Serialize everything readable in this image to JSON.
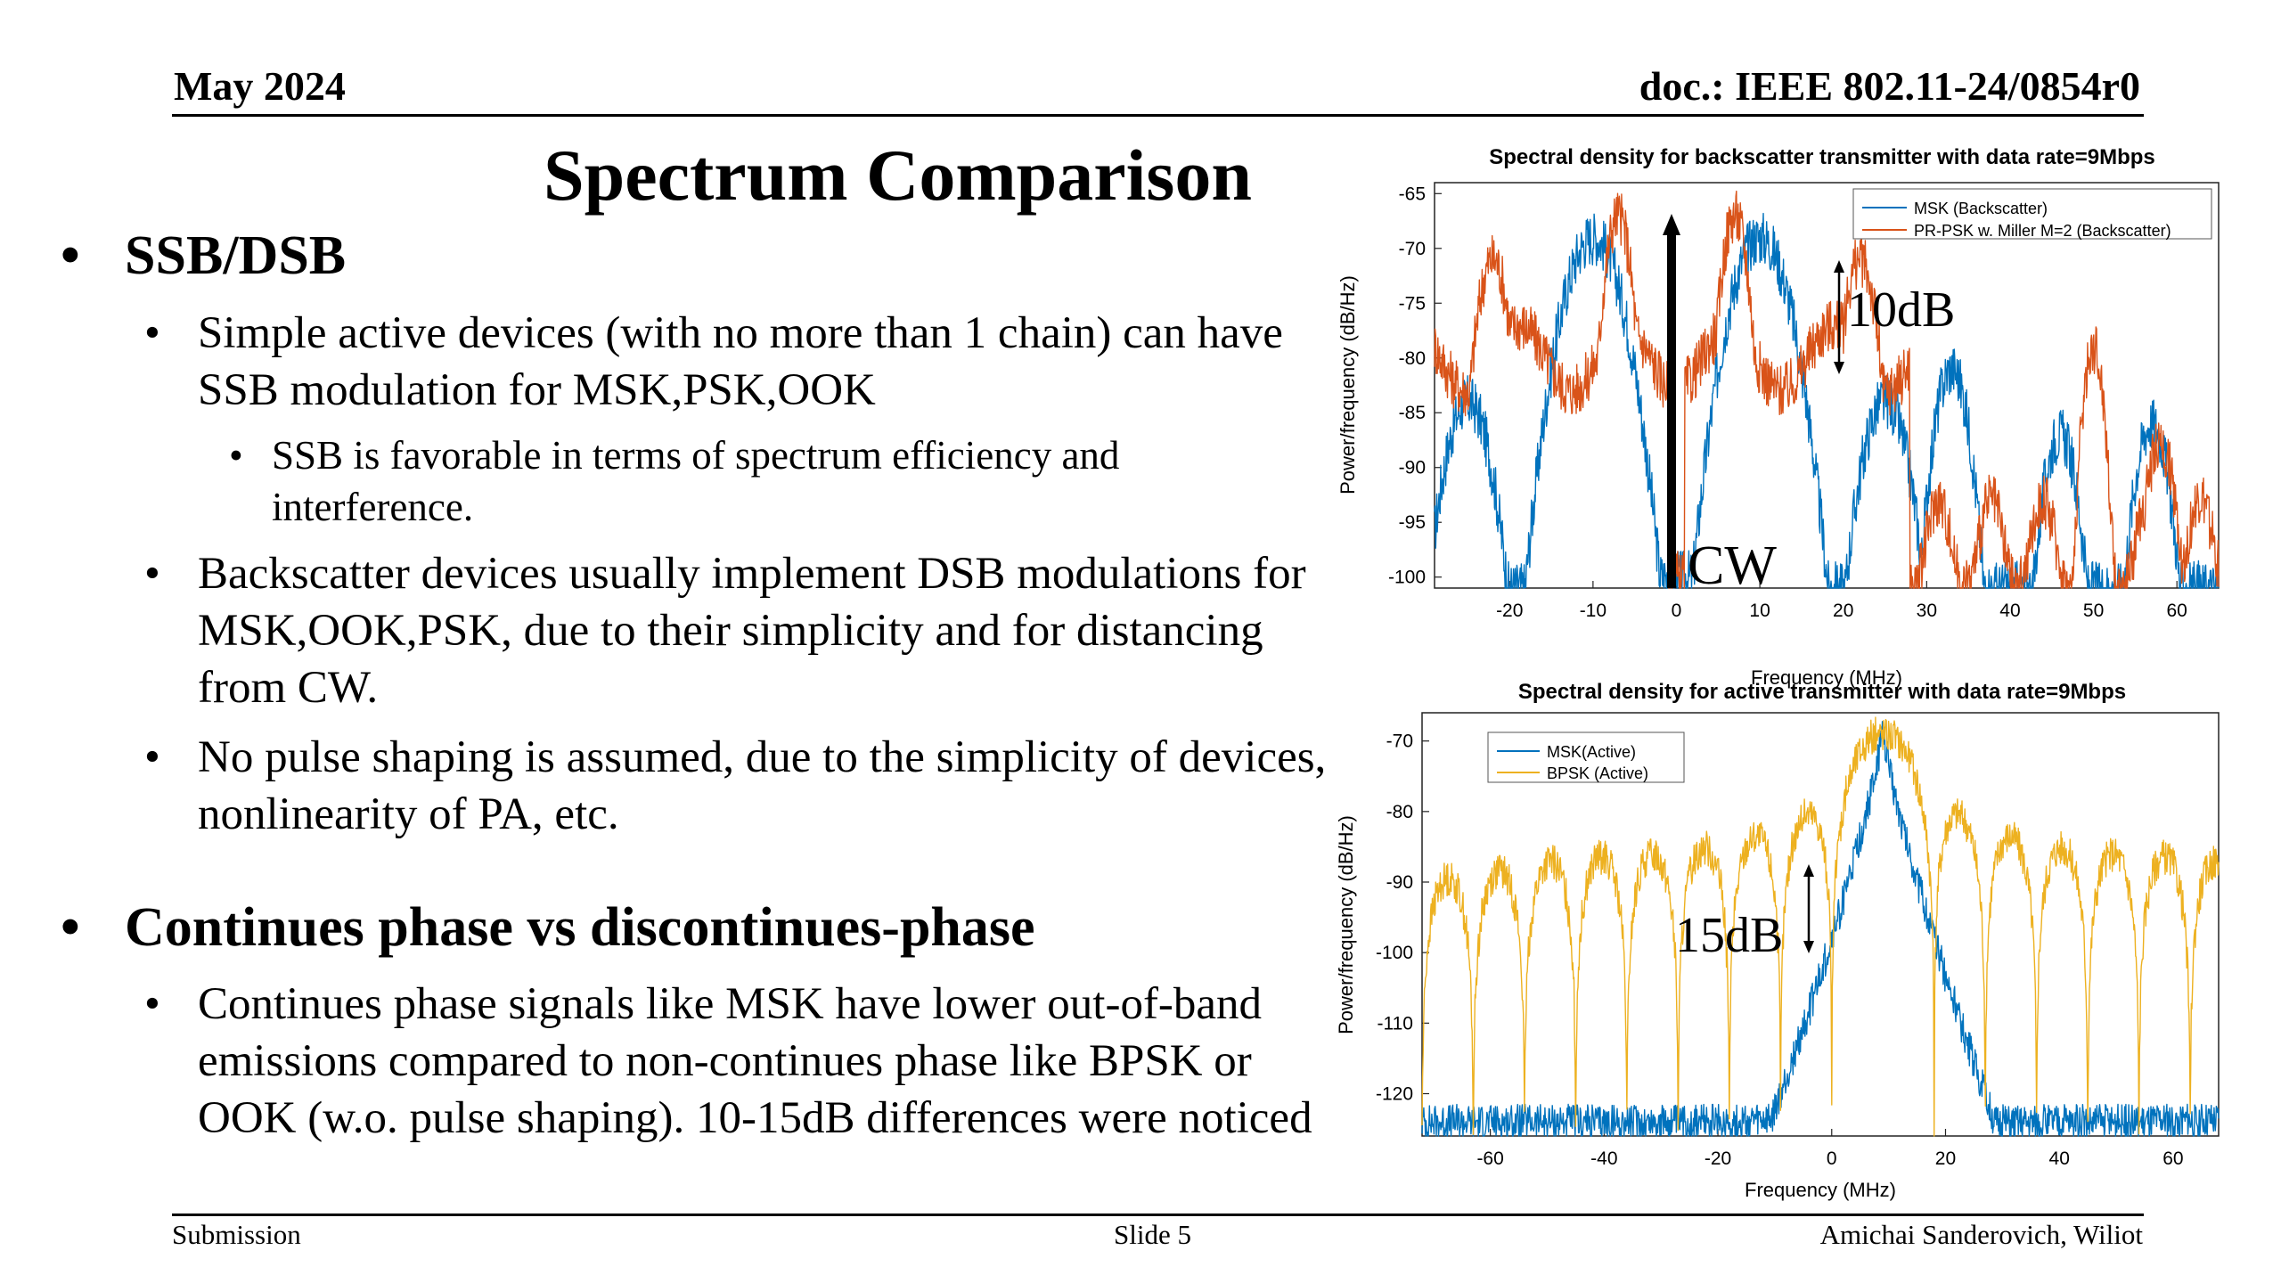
{
  "header": {
    "date": "May 2024",
    "doc": "doc.: IEEE 802.11-24/0854r0"
  },
  "slide": {
    "title": "Spectrum Comparison",
    "bullets": [
      {
        "text": "SSB/DSB"
      },
      {
        "text": "Simple active devices (with no more than 1 chain) can have SSB modulation for MSK,PSK,OOK"
      },
      {
        "text": "SSB is favorable in terms of spectrum efficiency and interference."
      },
      {
        "text": "Backscatter devices usually implement DSB modulations for MSK,OOK,PSK, due to their simplicity and for distancing from CW."
      },
      {
        "text": "No pulse shaping is assumed, due to the simplicity of devices, nonlinearity of PA, etc."
      },
      {
        "text": "Continues phase vs discontinues-phase"
      },
      {
        "text": "Continues phase signals like MSK have lower out-of-band emissions compared to non-continues phase like BPSK or OOK (w.o. pulse shaping). 10-15dB differences were noticed"
      }
    ],
    "bullet_glyph": "•"
  },
  "footer": {
    "left": "Submission",
    "center": "Slide 5",
    "right": "Amichai Sanderovich, Wiliot"
  },
  "chart_data": [
    {
      "type": "line",
      "title": "Spectral density for backscatter transmitter with data rate=9Mbps",
      "xlabel": "Frequency (MHz)",
      "ylabel": "Power/frequency (dB/Hz)",
      "xlim": [
        -29,
        65
      ],
      "ylim": [
        -101,
        -64
      ],
      "xticks": [
        -20,
        -10,
        0,
        10,
        20,
        30,
        40,
        50,
        60
      ],
      "yticks": [
        -65,
        -70,
        -75,
        -80,
        -85,
        -90,
        -95,
        -100
      ],
      "legend_position": "top-right",
      "grid": false,
      "series": [
        {
          "name": "MSK (Backscatter)",
          "color": "#0072BD",
          "peaks": [
            {
              "x": -10,
              "y": -69
            },
            {
              "x": 10,
              "y": -69
            },
            {
              "x": -25,
              "y": -83
            },
            {
              "x": 25,
              "y": -83
            },
            {
              "x": 33,
              "y": -80
            },
            {
              "x": 46,
              "y": -86
            },
            {
              "x": 57,
              "y": -85
            }
          ]
        },
        {
          "name": "PR-PSK w. Miller M=2 (Backscatter)",
          "color": "#D95319",
          "peaks": [
            {
              "x": -22,
              "y": -71
            },
            {
              "x": -7,
              "y": -66
            },
            {
              "x": 0,
              "y": -80
            },
            {
              "x": 7,
              "y": -66
            },
            {
              "x": 22,
              "y": -71
            },
            {
              "x": 30,
              "y": -90
            },
            {
              "x": 50,
              "y": -78
            },
            {
              "x": 58,
              "y": -87
            }
          ]
        }
      ],
      "annotations": [
        {
          "text": "CW",
          "x": 0,
          "y": -95
        },
        {
          "text": "10dB",
          "x": 19,
          "y": -75
        }
      ]
    },
    {
      "type": "line",
      "title": "Spectral density for active transmitter with data rate=9Mbps",
      "xlabel": "Frequency (MHz)",
      "ylabel": "Power/frequency (dB/Hz)",
      "xlim": [
        -72,
        68
      ],
      "ylim": [
        -126,
        -66
      ],
      "xticks": [
        -60,
        -40,
        -20,
        0,
        20,
        40,
        60
      ],
      "yticks": [
        -70,
        -80,
        -90,
        -100,
        -110,
        -120
      ],
      "legend_position": "top-left",
      "grid": false,
      "series": [
        {
          "name": "MSK(Active)",
          "color": "#0072BD",
          "peaks": [
            {
              "x": 9,
              "y": -68
            },
            {
              "x": -5,
              "y": -105
            },
            {
              "x": 23,
              "y": -104
            }
          ]
        },
        {
          "name": "BPSK (Active)",
          "color": "#EDB120",
          "peaks": [
            {
              "x": 9,
              "y": -69
            },
            {
              "x": -5,
              "y": -90
            },
            {
              "x": 23,
              "y": -90
            },
            {
              "x": -60,
              "y": -99
            },
            {
              "x": 60,
              "y": -99
            }
          ]
        }
      ],
      "annotations": [
        {
          "text": "15dB",
          "x": -5,
          "y": -97
        }
      ]
    }
  ]
}
